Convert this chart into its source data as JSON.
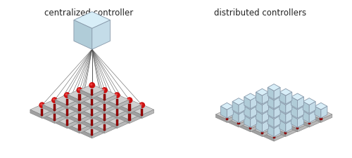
{
  "title_left": "centralized controller",
  "title_right": "distributed controllers",
  "bg_color": "#ffffff",
  "title_fontsize": 8.5,
  "title_color": "#222222",
  "hex_face": "#d0d0d0",
  "hex_left": "#a0a0a0",
  "hex_right": "#b8b8b8",
  "hex_edge": "#808080",
  "sphere_color": "#cc1111",
  "sphere_hi": "#ff5555",
  "cyl_color": "#990000",
  "cyl_edge": "#660000",
  "box_top": "#d8eef8",
  "box_left": "#b0ccd8",
  "box_right": "#c4dce8",
  "box_edge": "#8899aa",
  "line_color": "#555555",
  "shadow_color": "#888888"
}
